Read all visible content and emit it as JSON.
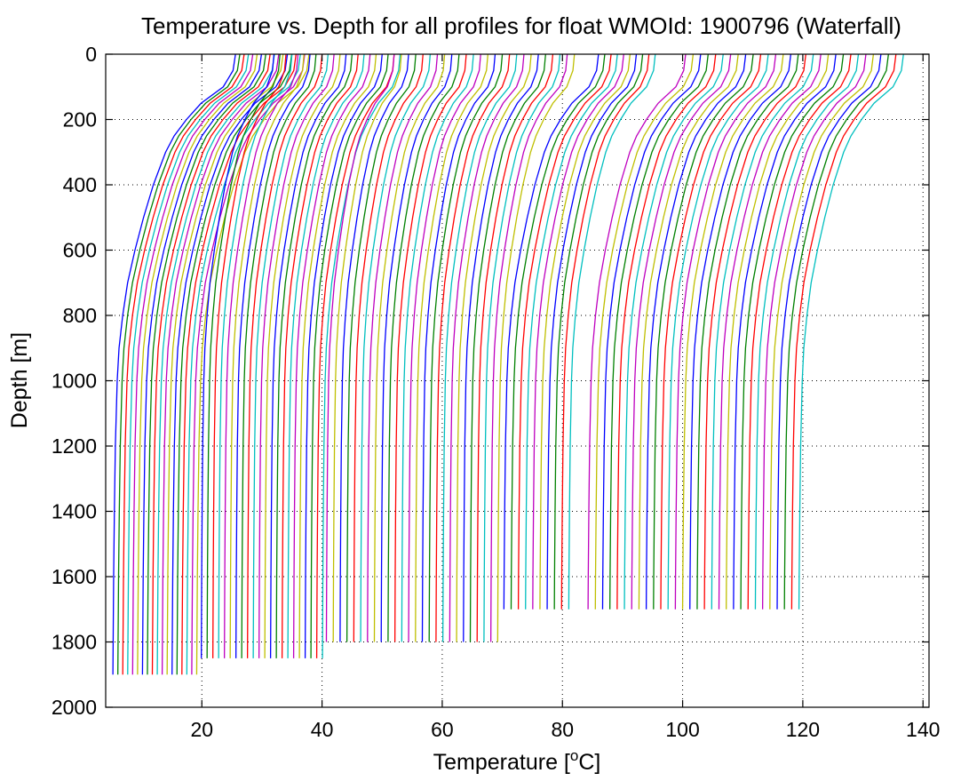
{
  "chart_data": {
    "type": "line",
    "title": "Temperature vs. Depth for all profiles for float WMOId: 1900796 (Waterfall)",
    "xlabel_main": "Temperature [",
    "xlabel_sup": "o",
    "xlabel_end": "C]",
    "ylabel": "Depth [m]",
    "xlim": [
      4,
      141
    ],
    "ylim": [
      0,
      2000
    ],
    "y_reversed": true,
    "grid": true,
    "x_ticks": [
      20,
      40,
      60,
      80,
      100,
      120,
      140
    ],
    "y_ticks": [
      0,
      200,
      400,
      600,
      800,
      1000,
      1200,
      1400,
      1600,
      1800,
      2000
    ],
    "x_tick_labels": [
      "20",
      "40",
      "60",
      "80",
      "100",
      "120",
      "140"
    ],
    "y_tick_labels": [
      "0",
      "200",
      "400",
      "600",
      "800",
      "1000",
      "1200",
      "1400",
      "1600",
      "1800",
      "2000"
    ],
    "color_cycle": [
      "#0000ff",
      "#008000",
      "#ff0000",
      "#00bfbf",
      "#bf00bf",
      "#bfbf00"
    ],
    "series_groups": [
      {
        "count": 18,
        "deep_temp_start": 5.2,
        "deep_temp_step": 0.82,
        "surface_temp_start": 25.6,
        "surface_temp_step": 0.72,
        "max_depth": 1900
      },
      {
        "count": 22,
        "deep_temp_start": 19.9,
        "deep_temp_step": 0.96,
        "surface_temp_start": 32.0,
        "surface_temp_step": 1.0,
        "max_depth": 1850
      },
      {
        "count": 26,
        "deep_temp_start": 40.7,
        "deep_temp_step": 1.14,
        "surface_temp_start": 52.0,
        "surface_temp_step": 1.2,
        "max_depth": 1800
      },
      {
        "count": 10,
        "deep_temp_start": 70.2,
        "deep_temp_step": 1.2,
        "surface_temp_start": 86.0,
        "surface_temp_step": 1.05,
        "max_depth": 1750
      },
      {
        "count": 30,
        "deep_temp_start": 84.2,
        "deep_temp_step": 1.21,
        "surface_temp_start": 100.5,
        "surface_temp_step": 1.25,
        "max_depth": 1700
      }
    ],
    "profile_shape": {
      "depths": [
        0,
        50,
        100,
        150,
        200,
        250,
        300,
        400,
        500,
        600,
        700,
        800,
        900,
        1000,
        1200,
        1400,
        1600,
        1700,
        1800,
        1850,
        1900
      ],
      "fraction_of_range": [
        1.0,
        0.98,
        0.9,
        0.72,
        0.6,
        0.5,
        0.43,
        0.33,
        0.25,
        0.18,
        0.12,
        0.08,
        0.05,
        0.035,
        0.02,
        0.012,
        0.006,
        0.004,
        0.002,
        0.001,
        0.0
      ]
    }
  }
}
